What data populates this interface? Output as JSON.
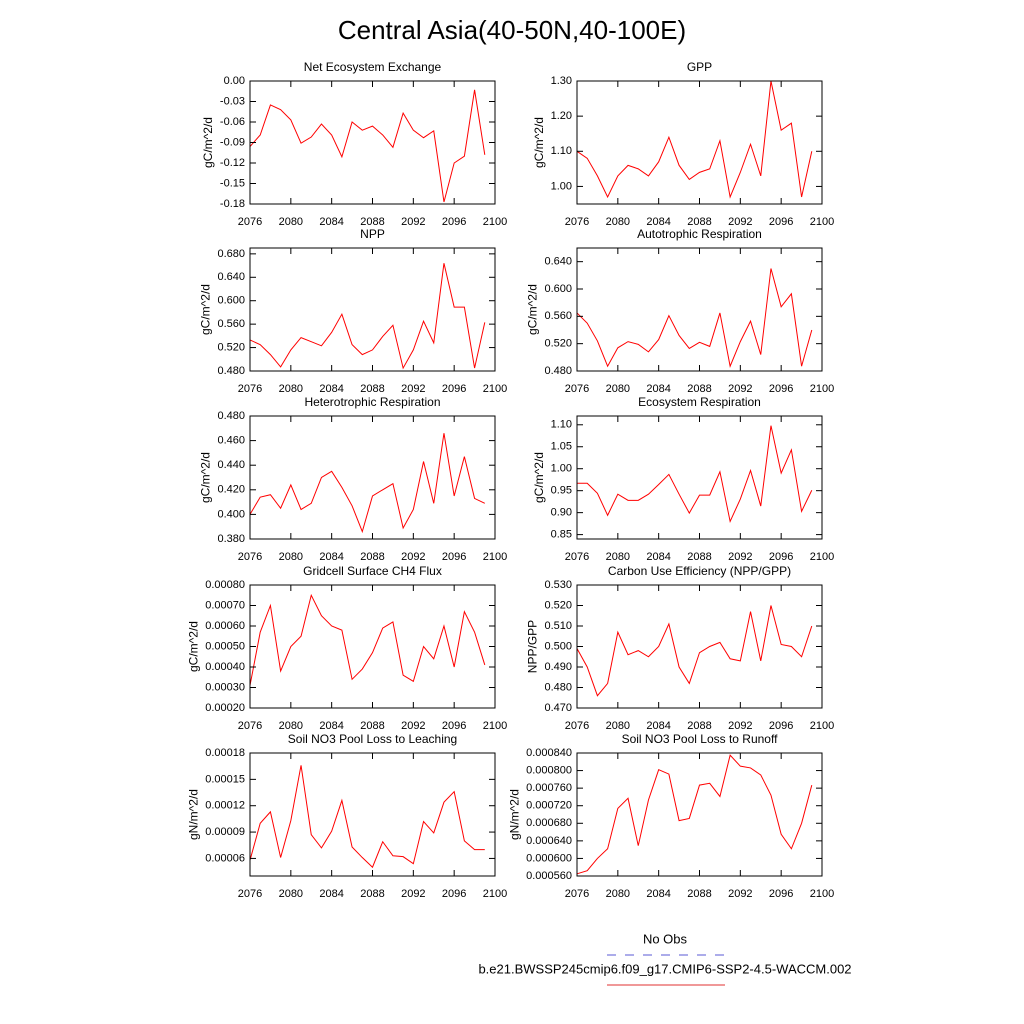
{
  "title": "Central Asia(40-50N,40-100E)",
  "legend": [
    {
      "name": "No Obs",
      "color": "#5a5ad6",
      "dashed": true
    },
    {
      "name": "b.e21.BWSSP245cmip6.f09_g17.CMIP6-SSP2-4.5-WACCM.002",
      "color": "#e03030",
      "dashed": false
    }
  ],
  "chart_data": [
    {
      "type": "line",
      "title": "Net Ecosystem Exchange",
      "ylabel": "gC/m^2/d",
      "color": "#ff0000",
      "x": [
        2076,
        2077,
        2078,
        2079,
        2080,
        2081,
        2082,
        2083,
        2084,
        2085,
        2086,
        2087,
        2088,
        2089,
        2090,
        2091,
        2092,
        2093,
        2094,
        2095,
        2096,
        2097,
        2098,
        2099
      ],
      "values": [
        -0.096,
        -0.079,
        -0.035,
        -0.042,
        -0.057,
        -0.091,
        -0.082,
        -0.063,
        -0.079,
        -0.111,
        -0.06,
        -0.072,
        -0.066,
        -0.079,
        -0.097,
        -0.047,
        -0.072,
        -0.083,
        -0.073,
        -0.177,
        -0.12,
        -0.11,
        -0.013,
        -0.108
      ],
      "xlim": [
        2076,
        2100
      ],
      "xticks": [
        2076,
        2080,
        2084,
        2088,
        2092,
        2096,
        2100
      ],
      "ylim": [
        -0.18,
        0
      ],
      "yticks": [
        -0.18,
        -0.15,
        -0.12,
        -0.09,
        -0.06,
        -0.03,
        {
          "value": 0,
          "label": "0.00"
        }
      ]
    },
    {
      "type": "line",
      "title": "GPP",
      "ylabel": "gC/m^2/d",
      "color": "#ff0000",
      "x": [
        2076,
        2077,
        2078,
        2079,
        2080,
        2081,
        2082,
        2083,
        2084,
        2085,
        2086,
        2087,
        2088,
        2089,
        2090,
        2091,
        2092,
        2093,
        2094,
        2095,
        2096,
        2097,
        2098,
        2099
      ],
      "values": [
        1.1,
        1.08,
        1.03,
        0.97,
        1.03,
        1.06,
        1.05,
        1.03,
        1.07,
        1.14,
        1.06,
        1.02,
        1.04,
        1.05,
        1.13,
        0.97,
        1.04,
        1.12,
        1.03,
        1.3,
        1.16,
        1.18,
        0.97,
        1.1
      ],
      "xlim": [
        2076,
        2100
      ],
      "xticks": [
        2076,
        2080,
        2084,
        2088,
        2092,
        2096,
        2100
      ],
      "ylim": [
        0.95,
        1.3
      ],
      "yticks": [
        {
          "value": 1,
          "label": "1.00"
        },
        {
          "value": 1.1,
          "label": "1.10"
        },
        {
          "value": 1.2,
          "label": "1.20"
        },
        {
          "value": 1.3,
          "label": "1.30"
        }
      ]
    },
    {
      "type": "line",
      "title": "NPP",
      "ylabel": "gC/m^2/d",
      "color": "#ff0000",
      "x": [
        2076,
        2077,
        2078,
        2079,
        2080,
        2081,
        2082,
        2083,
        2084,
        2085,
        2086,
        2087,
        2088,
        2089,
        2090,
        2091,
        2092,
        2093,
        2094,
        2095,
        2096,
        2097,
        2098,
        2099
      ],
      "values": [
        0.533,
        0.525,
        0.508,
        0.487,
        0.516,
        0.537,
        0.53,
        0.523,
        0.546,
        0.577,
        0.525,
        0.508,
        0.516,
        0.539,
        0.558,
        0.485,
        0.516,
        0.565,
        0.528,
        0.664,
        0.589,
        0.589,
        0.485,
        0.563
      ],
      "xlim": [
        2076,
        2100
      ],
      "xticks": [
        2076,
        2080,
        2084,
        2088,
        2092,
        2096,
        2100
      ],
      "ylim": [
        0.48,
        0.69
      ],
      "yticks": [
        {
          "value": 0.48,
          "label": "0.480"
        },
        {
          "value": 0.52,
          "label": "0.520"
        },
        {
          "value": 0.56,
          "label": "0.560"
        },
        {
          "value": 0.6,
          "label": "0.600"
        },
        {
          "value": 0.64,
          "label": "0.640"
        },
        {
          "value": 0.68,
          "label": "0.680"
        }
      ]
    },
    {
      "type": "line",
      "title": "Autotrophic Respiration",
      "ylabel": "gC/m^2/d",
      "color": "#ff0000",
      "x": [
        2076,
        2077,
        2078,
        2079,
        2080,
        2081,
        2082,
        2083,
        2084,
        2085,
        2086,
        2087,
        2088,
        2089,
        2090,
        2091,
        2092,
        2093,
        2094,
        2095,
        2096,
        2097,
        2098,
        2099
      ],
      "values": [
        0.565,
        0.55,
        0.524,
        0.487,
        0.514,
        0.523,
        0.519,
        0.508,
        0.526,
        0.561,
        0.532,
        0.513,
        0.522,
        0.516,
        0.565,
        0.487,
        0.523,
        0.553,
        0.504,
        0.63,
        0.574,
        0.593,
        0.487,
        0.54
      ],
      "xlim": [
        2076,
        2100
      ],
      "xticks": [
        2076,
        2080,
        2084,
        2088,
        2092,
        2096,
        2100
      ],
      "ylim": [
        0.48,
        0.66
      ],
      "yticks": [
        {
          "value": 0.48,
          "label": "0.480"
        },
        {
          "value": 0.52,
          "label": "0.520"
        },
        {
          "value": 0.56,
          "label": "0.560"
        },
        {
          "value": 0.6,
          "label": "0.600"
        },
        {
          "value": 0.64,
          "label": "0.640"
        }
      ]
    },
    {
      "type": "line",
      "title": "Heterotrophic Respiration",
      "ylabel": "gC/m^2/d",
      "color": "#ff0000",
      "x": [
        2076,
        2077,
        2078,
        2079,
        2080,
        2081,
        2082,
        2083,
        2084,
        2085,
        2086,
        2087,
        2088,
        2089,
        2090,
        2091,
        2092,
        2093,
        2094,
        2095,
        2096,
        2097,
        2098,
        2099
      ],
      "values": [
        0.4,
        0.414,
        0.416,
        0.405,
        0.424,
        0.404,
        0.409,
        0.43,
        0.435,
        0.422,
        0.407,
        0.386,
        0.415,
        0.42,
        0.425,
        0.389,
        0.404,
        0.443,
        0.409,
        0.466,
        0.415,
        0.447,
        0.413,
        0.409
      ],
      "xlim": [
        2076,
        2100
      ],
      "xticks": [
        2076,
        2080,
        2084,
        2088,
        2092,
        2096,
        2100
      ],
      "ylim": [
        0.38,
        0.48
      ],
      "yticks": [
        {
          "value": 0.38,
          "label": "0.380"
        },
        {
          "value": 0.4,
          "label": "0.400"
        },
        {
          "value": 0.42,
          "label": "0.420"
        },
        {
          "value": 0.44,
          "label": "0.440"
        },
        {
          "value": 0.46,
          "label": "0.460"
        },
        {
          "value": 0.48,
          "label": "0.480"
        }
      ]
    },
    {
      "type": "line",
      "title": "Ecosystem Respiration",
      "ylabel": "gC/m^2/d",
      "color": "#ff0000",
      "x": [
        2076,
        2077,
        2078,
        2079,
        2080,
        2081,
        2082,
        2083,
        2084,
        2085,
        2086,
        2087,
        2088,
        2089,
        2090,
        2091,
        2092,
        2093,
        2094,
        2095,
        2096,
        2097,
        2098,
        2099
      ],
      "values": [
        0.967,
        0.967,
        0.944,
        0.894,
        0.942,
        0.928,
        0.928,
        0.942,
        0.964,
        0.987,
        0.942,
        0.899,
        0.94,
        0.94,
        0.993,
        0.88,
        0.931,
        0.996,
        0.915,
        1.098,
        0.99,
        1.043,
        0.903,
        0.951
      ],
      "xlim": [
        2076,
        2100
      ],
      "xticks": [
        2076,
        2080,
        2084,
        2088,
        2092,
        2096,
        2100
      ],
      "ylim": [
        0.84,
        1.12
      ],
      "yticks": [
        0.85,
        {
          "value": 0.9,
          "label": "0.90"
        },
        0.95,
        {
          "value": 1,
          "label": "1.00"
        },
        1.05,
        {
          "value": 1.1,
          "label": "1.10"
        }
      ]
    },
    {
      "type": "line",
      "title": "Gridcell Surface CH4 Flux",
      "ylabel": "gC/m^2/d",
      "color": "#ff0000",
      "x": [
        2076,
        2077,
        2078,
        2079,
        2080,
        2081,
        2082,
        2083,
        2084,
        2085,
        2086,
        2087,
        2088,
        2089,
        2090,
        2091,
        2092,
        2093,
        2094,
        2095,
        2096,
        2097,
        2098,
        2099
      ],
      "values": [
        0.00031,
        0.00057,
        0.0007,
        0.00038,
        0.0005,
        0.00055,
        0.00075,
        0.00065,
        0.0006,
        0.00058,
        0.00034,
        0.00039,
        0.00047,
        0.00059,
        0.00062,
        0.00036,
        0.00033,
        0.0005,
        0.00044,
        0.0006,
        0.0004,
        0.00067,
        0.00057,
        0.00041
      ],
      "xlim": [
        2076,
        2100
      ],
      "xticks": [
        2076,
        2080,
        2084,
        2088,
        2092,
        2096,
        2100
      ],
      "ylim": [
        0.0002,
        0.0008
      ],
      "yticks": [
        {
          "value": 0.0002,
          "label": "0.00020"
        },
        {
          "value": 0.0003,
          "label": "0.00030"
        },
        {
          "value": 0.0004,
          "label": "0.00040"
        },
        {
          "value": 0.0005,
          "label": "0.00050"
        },
        {
          "value": 0.0006,
          "label": "0.00060"
        },
        {
          "value": 0.0007,
          "label": "0.00070"
        },
        {
          "value": 0.0008,
          "label": "0.00080"
        }
      ]
    },
    {
      "type": "line",
      "title": "Carbon Use Efficiency (NPP/GPP)",
      "ylabel": "NPP/GPP",
      "color": "#ff0000",
      "x": [
        2076,
        2077,
        2078,
        2079,
        2080,
        2081,
        2082,
        2083,
        2084,
        2085,
        2086,
        2087,
        2088,
        2089,
        2090,
        2091,
        2092,
        2093,
        2094,
        2095,
        2096,
        2097,
        2098,
        2099
      ],
      "values": [
        0.499,
        0.49,
        0.476,
        0.482,
        0.507,
        0.496,
        0.498,
        0.495,
        0.5,
        0.511,
        0.49,
        0.482,
        0.497,
        0.5,
        0.502,
        0.494,
        0.493,
        0.517,
        0.493,
        0.52,
        0.501,
        0.5,
        0.495,
        0.51
      ],
      "xlim": [
        2076,
        2100
      ],
      "xticks": [
        2076,
        2080,
        2084,
        2088,
        2092,
        2096,
        2100
      ],
      "ylim": [
        0.47,
        0.53
      ],
      "yticks": [
        {
          "value": 0.47,
          "label": "0.470"
        },
        {
          "value": 0.48,
          "label": "0.480"
        },
        {
          "value": 0.49,
          "label": "0.490"
        },
        {
          "value": 0.5,
          "label": "0.500"
        },
        {
          "value": 0.51,
          "label": "0.510"
        },
        {
          "value": 0.52,
          "label": "0.520"
        },
        {
          "value": 0.53,
          "label": "0.530"
        }
      ]
    },
    {
      "type": "line",
      "title": "Soil NO3 Pool Loss to Leaching",
      "ylabel": "gN/m^2/d",
      "color": "#ff0000",
      "x": [
        2076,
        2077,
        2078,
        2079,
        2080,
        2081,
        2082,
        2083,
        2084,
        2085,
        2086,
        2087,
        2088,
        2089,
        2090,
        2091,
        2092,
        2093,
        2094,
        2095,
        2096,
        2097,
        2098,
        2099
      ],
      "values": [
        5.8e-05,
        0.0001,
        0.000113,
        6.1e-05,
        0.000103,
        0.000166,
        8.7e-05,
        7.2e-05,
        9.1e-05,
        0.000126,
        7.3e-05,
        6.1e-05,
        5e-05,
        7.9e-05,
        6.3e-05,
        6.2e-05,
        5.4e-05,
        0.000102,
        8.9e-05,
        0.000124,
        0.000136,
        8e-05,
        7e-05,
        7e-05
      ],
      "xlim": [
        2076,
        2100
      ],
      "xticks": [
        2076,
        2080,
        2084,
        2088,
        2092,
        2096,
        2100
      ],
      "ylim": [
        4e-05,
        0.00018
      ],
      "yticks": [
        6e-05,
        9e-05,
        0.00012,
        0.00015,
        0.00018
      ]
    },
    {
      "type": "line",
      "title": "Soil NO3 Pool Loss to Runoff",
      "ylabel": "gN/m^2/d",
      "color": "#ff0000",
      "x": [
        2076,
        2077,
        2078,
        2079,
        2080,
        2081,
        2082,
        2083,
        2084,
        2085,
        2086,
        2087,
        2088,
        2089,
        2090,
        2091,
        2092,
        2093,
        2094,
        2095,
        2096,
        2097,
        2098,
        2099
      ],
      "values": [
        0.000565,
        0.000572,
        0.0006,
        0.000622,
        0.000714,
        0.000737,
        0.000629,
        0.000733,
        0.000802,
        0.000792,
        0.000686,
        0.000691,
        0.000767,
        0.000771,
        0.000741,
        0.000835,
        0.00081,
        0.000806,
        0.00079,
        0.000744,
        0.000655,
        0.000622,
        0.00068,
        0.000767
      ],
      "xlim": [
        2076,
        2100
      ],
      "xticks": [
        2076,
        2080,
        2084,
        2088,
        2092,
        2096,
        2100
      ],
      "ylim": [
        0.00056,
        0.00084
      ],
      "yticks": [
        {
          "value": 0.00056,
          "label": "0.000560"
        },
        {
          "value": 0.0006,
          "label": "0.000600"
        },
        {
          "value": 0.00064,
          "label": "0.000640"
        },
        {
          "value": 0.00068,
          "label": "0.000680"
        },
        {
          "value": 0.00072,
          "label": "0.000720"
        },
        {
          "value": 0.00076,
          "label": "0.000760"
        },
        {
          "value": 0.0008,
          "label": "0.000800"
        },
        {
          "value": 0.00084,
          "label": "0.000840"
        }
      ]
    }
  ]
}
